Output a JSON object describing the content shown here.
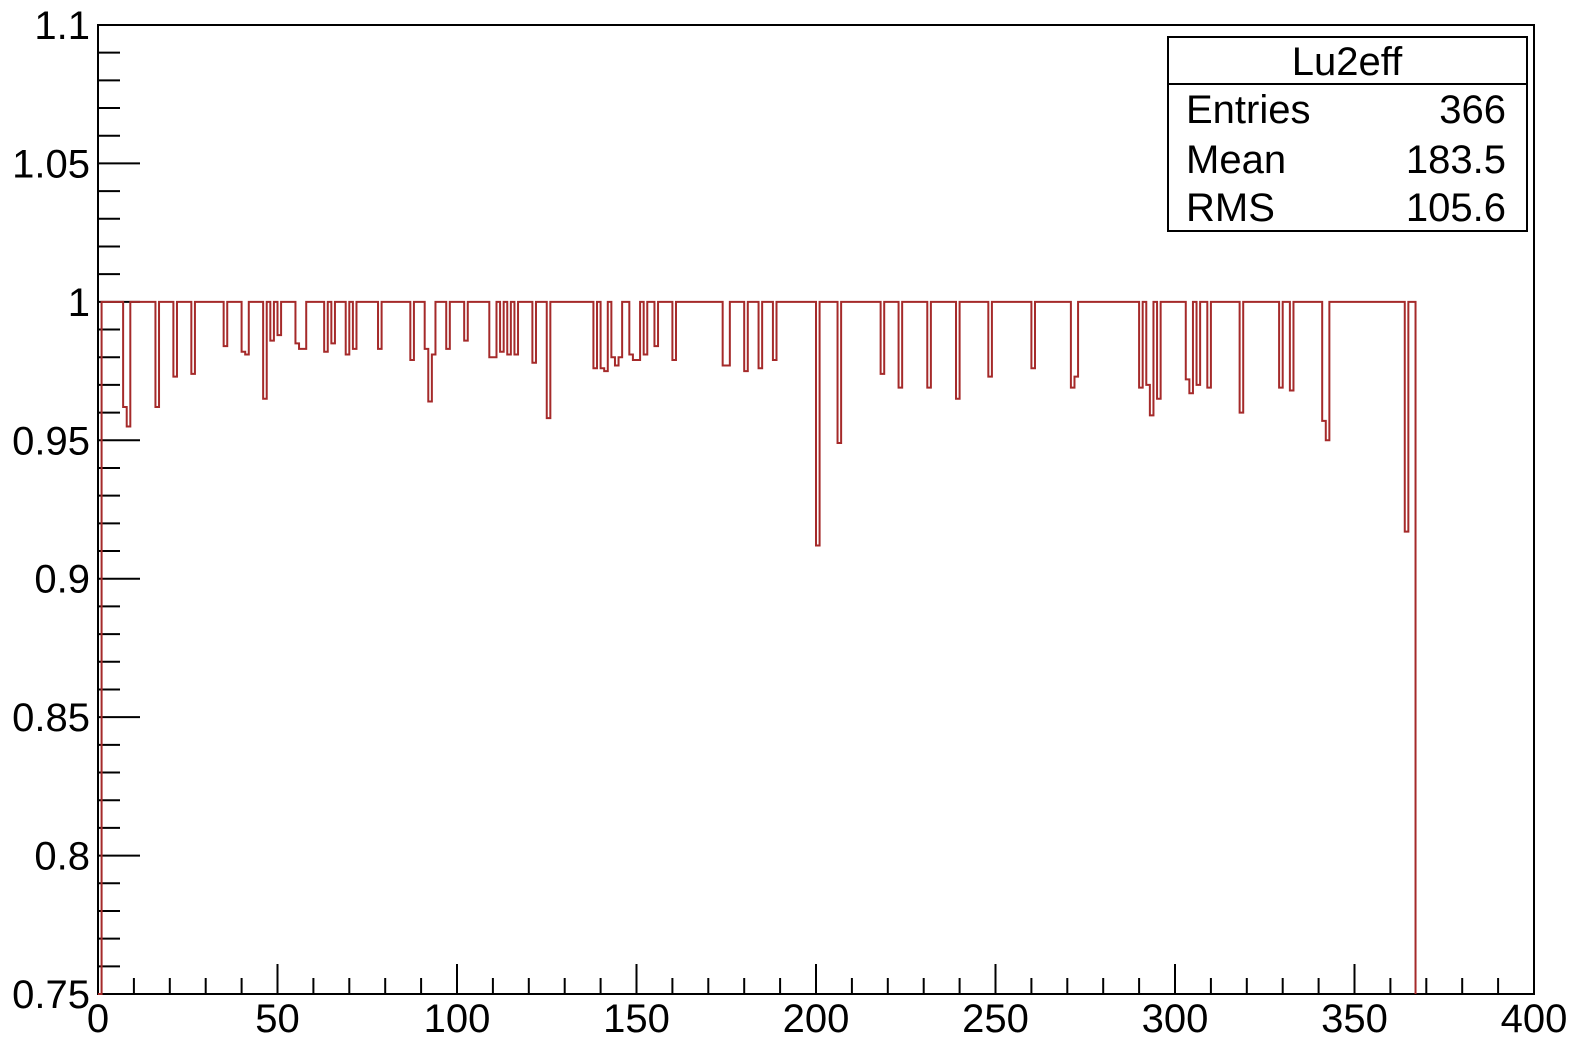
{
  "chart_data": {
    "type": "histogram-step",
    "title": "",
    "xlabel": "",
    "ylabel": "",
    "xlim": [
      0,
      400
    ],
    "ylim": [
      0.75,
      1.1
    ],
    "x_ticks": [
      "0",
      "50",
      "100",
      "150",
      "200",
      "250",
      "300",
      "350",
      "400"
    ],
    "y_ticks": [
      "0.75",
      "0.8",
      "0.85",
      "0.9",
      "0.95",
      "1",
      "1.05",
      "1.1"
    ],
    "line_color": "#a52a2a",
    "grid": false,
    "legend_placement": "top-right",
    "default_value": 1.0,
    "series": [
      {
        "bins_x_start": 0,
        "bin_width": 1,
        "n_bins": 366,
        "deviations": [
          [
            0,
            0
          ],
          [
            7,
            0.962
          ],
          [
            8,
            0.955
          ],
          [
            16,
            0.962
          ],
          [
            21,
            0.973
          ],
          [
            26,
            0.974
          ],
          [
            35,
            0.984
          ],
          [
            40,
            0.982
          ],
          [
            41,
            0.981
          ],
          [
            46,
            0.965
          ],
          [
            48,
            0.986
          ],
          [
            50,
            0.988
          ],
          [
            55,
            0.985
          ],
          [
            56,
            0.983
          ],
          [
            57,
            0.983
          ],
          [
            63,
            0.982
          ],
          [
            65,
            0.985
          ],
          [
            69,
            0.981
          ],
          [
            71,
            0.983
          ],
          [
            78,
            0.983
          ],
          [
            87,
            0.979
          ],
          [
            91,
            0.983
          ],
          [
            92,
            0.964
          ],
          [
            93,
            0.981
          ],
          [
            97,
            0.983
          ],
          [
            102,
            0.986
          ],
          [
            109,
            0.98
          ],
          [
            110,
            0.98
          ],
          [
            112,
            0.982
          ],
          [
            114,
            0.981
          ],
          [
            116,
            0.981
          ],
          [
            121,
            0.978
          ],
          [
            125,
            0.958
          ],
          [
            138,
            0.976
          ],
          [
            140,
            0.976
          ],
          [
            141,
            0.975
          ],
          [
            143,
            0.98
          ],
          [
            144,
            0.977
          ],
          [
            145,
            0.98
          ],
          [
            148,
            0.981
          ],
          [
            149,
            0.979
          ],
          [
            150,
            0.979
          ],
          [
            152,
            0.981
          ],
          [
            155,
            0.984
          ],
          [
            160,
            0.979
          ],
          [
            174,
            0.977
          ],
          [
            175,
            0.977
          ],
          [
            180,
            0.975
          ],
          [
            184,
            0.976
          ],
          [
            188,
            0.979
          ],
          [
            200,
            0.912
          ],
          [
            206,
            0.949
          ],
          [
            218,
            0.974
          ],
          [
            223,
            0.969
          ],
          [
            231,
            0.969
          ],
          [
            239,
            0.965
          ],
          [
            248,
            0.973
          ],
          [
            260,
            0.976
          ],
          [
            271,
            0.969
          ],
          [
            272,
            0.973
          ],
          [
            290,
            0.969
          ],
          [
            292,
            0.97
          ],
          [
            293,
            0.959
          ],
          [
            295,
            0.965
          ],
          [
            303,
            0.972
          ],
          [
            304,
            0.967
          ],
          [
            306,
            0.97
          ],
          [
            309,
            0.969
          ],
          [
            318,
            0.96
          ],
          [
            329,
            0.969
          ],
          [
            332,
            0.968
          ],
          [
            341,
            0.957
          ],
          [
            342,
            0.95
          ],
          [
            364,
            0.917
          ],
          [
            366,
            0.75
          ]
        ]
      }
    ]
  },
  "stats_box": {
    "title": "Lu2eff",
    "rows": [
      {
        "label": "Entries",
        "value": "366"
      },
      {
        "label": "Mean",
        "value": "183.5"
      },
      {
        "label": "RMS",
        "value": "105.6"
      }
    ]
  }
}
